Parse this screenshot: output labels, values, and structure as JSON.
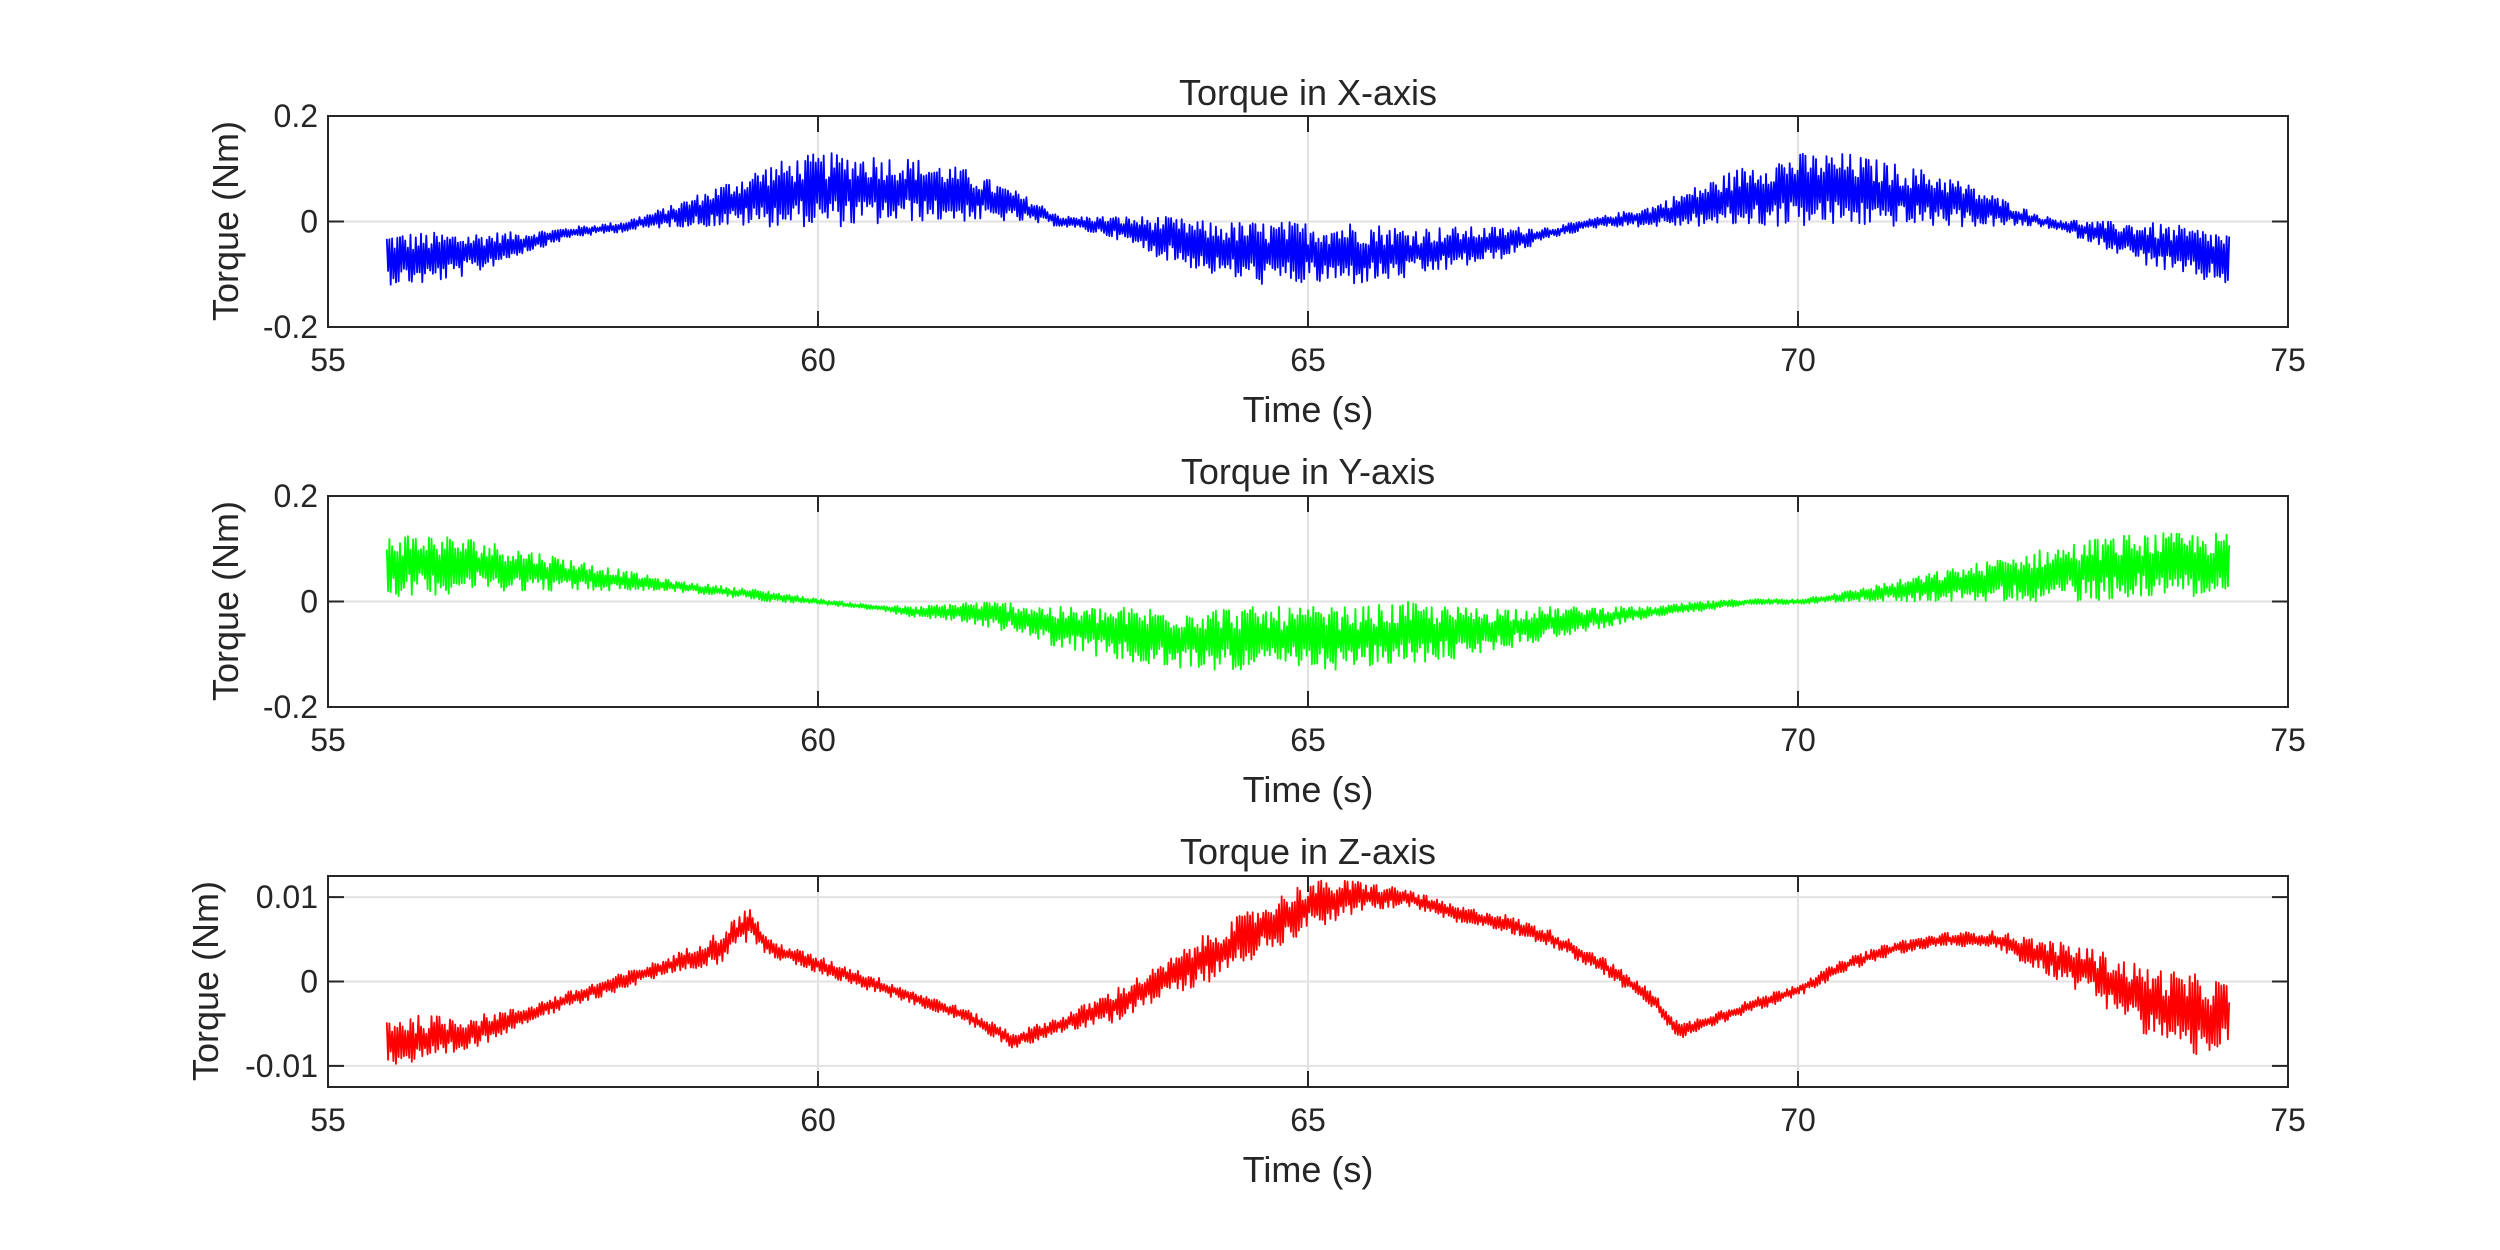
{
  "chart_data": [
    {
      "type": "line",
      "title": "Torque in X-axis",
      "xlabel": "Time (s)",
      "ylabel": "Torque (Nm)",
      "xlim": [
        55,
        75
      ],
      "ylim": [
        -0.2,
        0.2
      ],
      "xticks": [
        55,
        60,
        65,
        70,
        75
      ],
      "xtick_labels": [
        "55",
        "60",
        "65",
        "70",
        "75"
      ],
      "yticks": [
        -0.2,
        0,
        0.2
      ],
      "ytick_labels": [
        "-0.2",
        "0",
        "0.2"
      ],
      "grid": true,
      "series": [
        {
          "color": "#0000ff",
          "x": [
            55.6,
            56.0,
            56.5,
            57.0,
            57.5,
            58.0,
            58.5,
            59.0,
            59.5,
            60.0,
            60.5,
            61.0,
            61.5,
            62.0,
            62.5,
            63.0,
            63.5,
            64.0,
            64.5,
            65.0,
            65.5,
            66.0,
            66.5,
            67.0,
            67.5,
            68.0,
            68.5,
            69.0,
            69.5,
            70.0,
            70.5,
            71.0,
            71.5,
            72.0,
            72.5,
            73.0,
            73.5,
            74.0,
            74.4
          ],
          "y": [
            -0.07,
            -0.07,
            -0.06,
            -0.04,
            -0.02,
            -0.01,
            0.01,
            0.03,
            0.05,
            0.06,
            0.06,
            0.06,
            0.05,
            0.03,
            0.0,
            -0.01,
            -0.03,
            -0.05,
            -0.06,
            -0.06,
            -0.06,
            -0.06,
            -0.05,
            -0.04,
            -0.02,
            0.0,
            0.01,
            0.03,
            0.05,
            0.06,
            0.06,
            0.05,
            0.04,
            0.02,
            0.0,
            -0.02,
            -0.04,
            -0.06,
            -0.07
          ],
          "band": [
            0.05,
            0.05,
            0.04,
            0.02,
            0.01,
            0.01,
            0.02,
            0.04,
            0.06,
            0.07,
            0.07,
            0.06,
            0.05,
            0.03,
            0.01,
            0.02,
            0.04,
            0.05,
            0.06,
            0.06,
            0.06,
            0.05,
            0.04,
            0.03,
            0.01,
            0.01,
            0.02,
            0.04,
            0.06,
            0.07,
            0.07,
            0.06,
            0.05,
            0.03,
            0.01,
            0.02,
            0.04,
            0.05,
            0.05
          ]
        }
      ]
    },
    {
      "type": "line",
      "title": "Torque in Y-axis",
      "xlabel": "Time (s)",
      "ylabel": "Torque (Nm)",
      "xlim": [
        55,
        75
      ],
      "ylim": [
        -0.2,
        0.2
      ],
      "xticks": [
        55,
        60,
        65,
        70,
        75
      ],
      "xtick_labels": [
        "55",
        "60",
        "65",
        "70",
        "75"
      ],
      "yticks": [
        -0.2,
        0,
        0.2
      ],
      "ytick_labels": [
        "-0.2",
        "0",
        "0.2"
      ],
      "grid": true,
      "series": [
        {
          "color": "#00ff00",
          "x": [
            55.6,
            56.0,
            56.5,
            57.0,
            57.5,
            58.0,
            58.5,
            59.0,
            59.5,
            60.0,
            60.5,
            61.0,
            61.5,
            62.0,
            62.5,
            63.0,
            63.5,
            64.0,
            64.5,
            65.0,
            65.5,
            66.0,
            66.5,
            67.0,
            67.5,
            68.0,
            68.5,
            69.0,
            69.5,
            70.0,
            70.5,
            71.0,
            71.5,
            72.0,
            72.5,
            73.0,
            73.5,
            74.0,
            74.4
          ],
          "y": [
            0.07,
            0.07,
            0.07,
            0.06,
            0.05,
            0.04,
            0.03,
            0.02,
            0.01,
            0.0,
            -0.01,
            -0.02,
            -0.02,
            -0.03,
            -0.05,
            -0.06,
            -0.07,
            -0.07,
            -0.07,
            -0.07,
            -0.07,
            -0.06,
            -0.06,
            -0.05,
            -0.04,
            -0.03,
            -0.02,
            -0.01,
            0.0,
            0.0,
            0.01,
            0.02,
            0.03,
            0.04,
            0.05,
            0.06,
            0.07,
            0.07,
            0.07
          ],
          "band": [
            0.06,
            0.06,
            0.05,
            0.04,
            0.03,
            0.02,
            0.01,
            0.01,
            0.01,
            0.005,
            0.005,
            0.01,
            0.02,
            0.03,
            0.04,
            0.05,
            0.06,
            0.06,
            0.06,
            0.06,
            0.06,
            0.06,
            0.05,
            0.04,
            0.03,
            0.02,
            0.01,
            0.01,
            0.005,
            0.005,
            0.01,
            0.02,
            0.03,
            0.04,
            0.05,
            0.06,
            0.06,
            0.06,
            0.06
          ]
        }
      ]
    },
    {
      "type": "line",
      "title": "Torque in Z-axis",
      "xlabel": "Time (s)",
      "ylabel": "Torque (Nm)",
      "xlim": [
        55,
        75
      ],
      "ylim": [
        -0.0125,
        0.0125
      ],
      "xticks": [
        55,
        60,
        65,
        70,
        75
      ],
      "xtick_labels": [
        "55",
        "60",
        "65",
        "70",
        "75"
      ],
      "yticks": [
        -0.01,
        0,
        0.01
      ],
      "ytick_labels": [
        "-0.01",
        "0",
        "0.01"
      ],
      "grid": true,
      "series": [
        {
          "color": "#ff0000",
          "x": [
            55.6,
            56.0,
            56.5,
            57.0,
            57.5,
            58.0,
            58.5,
            59.0,
            59.3,
            59.5,
            60.0,
            60.5,
            61.0,
            61.5,
            62.0,
            62.5,
            63.0,
            63.5,
            64.0,
            64.5,
            65.0,
            65.5,
            66.0,
            66.5,
            67.0,
            67.5,
            68.0,
            68.5,
            68.8,
            69.0,
            69.5,
            70.0,
            70.5,
            71.0,
            71.5,
            72.0,
            72.5,
            73.0,
            73.5,
            74.0,
            74.4
          ],
          "y": [
            -0.007,
            -0.007,
            -0.006,
            -0.004,
            -0.002,
            0.0,
            0.002,
            0.004,
            0.007,
            0.004,
            0.002,
            0.0,
            -0.002,
            -0.004,
            -0.007,
            -0.005,
            -0.003,
            0.0,
            0.003,
            0.006,
            0.009,
            0.01,
            0.01,
            0.008,
            0.007,
            0.005,
            0.002,
            -0.002,
            -0.006,
            -0.005,
            -0.003,
            -0.001,
            0.002,
            0.004,
            0.005,
            0.005,
            0.003,
            0.001,
            -0.002,
            -0.004,
            -0.004
          ],
          "band": [
            0.003,
            0.003,
            0.002,
            0.001,
            0.001,
            0.001,
            0.001,
            0.002,
            0.002,
            0.001,
            0.001,
            0.001,
            0.0008,
            0.0008,
            0.001,
            0.001,
            0.002,
            0.002,
            0.003,
            0.003,
            0.003,
            0.002,
            0.001,
            0.001,
            0.001,
            0.001,
            0.001,
            0.001,
            0.001,
            0.0008,
            0.0008,
            0.0008,
            0.0008,
            0.0008,
            0.0008,
            0.001,
            0.002,
            0.003,
            0.004,
            0.005,
            0.004
          ]
        }
      ]
    }
  ]
}
